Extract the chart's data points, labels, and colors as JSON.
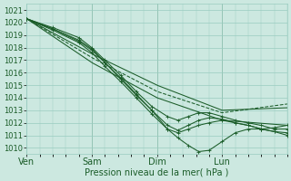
{
  "xlabel": "Pression niveau de la mer( hPa )",
  "ylim": [
    1009.5,
    1021.5
  ],
  "xlim": [
    0,
    100
  ],
  "yticks": [
    1010,
    1011,
    1012,
    1013,
    1014,
    1015,
    1016,
    1017,
    1018,
    1019,
    1020,
    1021
  ],
  "xtick_positions": [
    0,
    25,
    50,
    75
  ],
  "xtick_labels": [
    "Ven",
    "Sam",
    "Dim",
    "Lun"
  ],
  "vlines": [
    25,
    50,
    75
  ],
  "bg_color": "#cce8e0",
  "grid_color": "#99ccc0",
  "line_color": "#1a5c28",
  "curves": [
    {
      "name": "c1_straight_top",
      "points_x": [
        0,
        25,
        50,
        75,
        100
      ],
      "points_y": [
        1020.3,
        1017.5,
        1015.0,
        1013.0,
        1013.2
      ],
      "style": "-",
      "marker": false
    },
    {
      "name": "c2_straight_mid",
      "points_x": [
        0,
        25,
        50,
        75,
        100
      ],
      "points_y": [
        1020.3,
        1016.8,
        1014.0,
        1012.2,
        1011.8
      ],
      "style": "-",
      "marker": false
    },
    {
      "name": "c3_dip_deep",
      "points_x": [
        0,
        10,
        20,
        25,
        30,
        36,
        42,
        48,
        54,
        58,
        62,
        66,
        70,
        75,
        80,
        85,
        90,
        95,
        100
      ],
      "points_y": [
        1020.3,
        1019.5,
        1018.5,
        1017.8,
        1016.8,
        1015.6,
        1014.3,
        1013.0,
        1011.5,
        1010.8,
        1010.2,
        1009.7,
        1009.8,
        1010.5,
        1011.2,
        1011.5,
        1011.5,
        1011.6,
        1011.8
      ],
      "style": "-",
      "marker": true
    },
    {
      "name": "c4_dip_medium1",
      "points_x": [
        0,
        10,
        20,
        25,
        30,
        36,
        42,
        48,
        54,
        58,
        62,
        66,
        70,
        75,
        80,
        85,
        90,
        95,
        100
      ],
      "points_y": [
        1020.3,
        1019.4,
        1018.4,
        1017.6,
        1016.5,
        1015.3,
        1014.0,
        1012.7,
        1011.5,
        1011.2,
        1011.5,
        1011.8,
        1012.0,
        1012.2,
        1012.0,
        1011.8,
        1011.5,
        1011.3,
        1011.2
      ],
      "style": "-",
      "marker": true
    },
    {
      "name": "c5_dip_medium2",
      "points_x": [
        0,
        10,
        20,
        25,
        30,
        36,
        42,
        48,
        54,
        58,
        62,
        66,
        70,
        75,
        80,
        85,
        90,
        95,
        100
      ],
      "points_y": [
        1020.3,
        1019.5,
        1018.6,
        1017.9,
        1016.8,
        1015.5,
        1014.2,
        1013.0,
        1011.8,
        1011.4,
        1011.8,
        1012.2,
        1012.4,
        1012.3,
        1012.0,
        1011.8,
        1011.5,
        1011.3,
        1011.0
      ],
      "style": "-",
      "marker": true
    },
    {
      "name": "c6_dip_shallow",
      "points_x": [
        0,
        10,
        20,
        25,
        30,
        36,
        42,
        48,
        54,
        58,
        62,
        66,
        70,
        75,
        80,
        85,
        90,
        95,
        100
      ],
      "points_y": [
        1020.3,
        1019.6,
        1018.8,
        1018.0,
        1017.0,
        1015.8,
        1014.5,
        1013.3,
        1012.5,
        1012.2,
        1012.5,
        1012.8,
        1012.8,
        1012.5,
        1012.2,
        1012.0,
        1011.8,
        1011.5,
        1011.5
      ],
      "style": "-",
      "marker": true
    },
    {
      "name": "c7_dotted_top",
      "points_x": [
        0,
        25,
        50,
        75,
        100
      ],
      "points_y": [
        1020.3,
        1017.2,
        1014.5,
        1012.8,
        1013.5
      ],
      "style": "--",
      "marker": false
    }
  ]
}
